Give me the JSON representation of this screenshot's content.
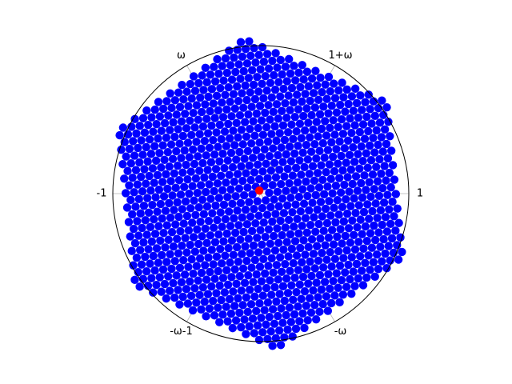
{
  "chart_data": {
    "type": "scatter",
    "projection": "polar",
    "radial_limit": [
      0,
      1
    ],
    "grid": true,
    "radial_ticks_visible": false,
    "angular_ticks": [
      {
        "angle_deg": 0,
        "label": "1"
      },
      {
        "angle_deg": 60,
        "label": "1+ω"
      },
      {
        "angle_deg": 120,
        "label": "ω"
      },
      {
        "angle_deg": 180,
        "label": "-1"
      },
      {
        "angle_deg": 240,
        "label": "-ω-1"
      },
      {
        "angle_deg": 300,
        "label": "-ω"
      }
    ],
    "highlight_point": {
      "x": -0.01,
      "y": 0.02,
      "color": "#ff0000"
    },
    "lattice": {
      "basis_1": [
        0.0564,
        0.0059
      ],
      "basis_2": [
        0.0231,
        0.0518
      ],
      "hexagon_rotation_deg": 5.9,
      "apothem": 0.93,
      "color": "#0000ff"
    }
  },
  "colors": {
    "points": "#0000ff",
    "highlight": "#ff0000",
    "grid": "#b0b0b0",
    "frame": "#000000"
  }
}
